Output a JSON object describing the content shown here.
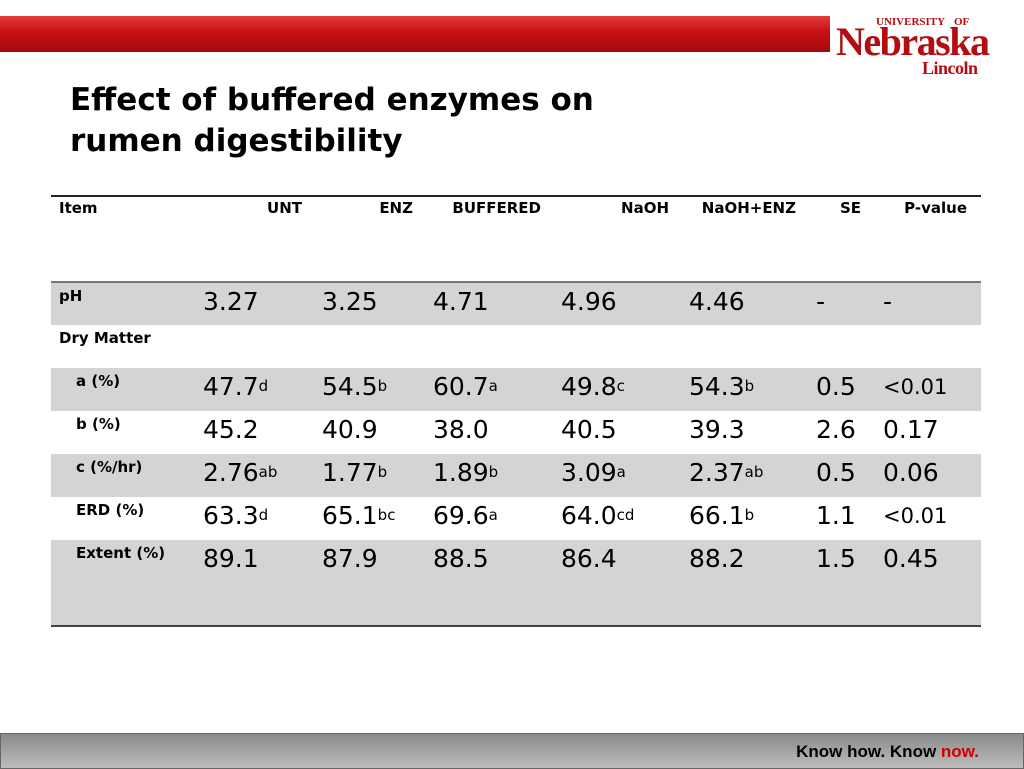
{
  "header": {
    "logo_university": "UNIVERSITY",
    "logo_of": "OF",
    "logo_name": "Nebraska",
    "logo_campus": "Lincoln"
  },
  "title": "Effect of buffered enzymes on rumen digestibility",
  "table": {
    "columns": [
      "Item",
      "UNT",
      "ENZ",
      "BUFFERED",
      "NaOH",
      "NaOH+ENZ",
      "SE",
      "P-value"
    ],
    "rows": [
      {
        "label": "pH",
        "values": [
          [
            "3.27",
            ""
          ],
          [
            "3.25",
            ""
          ],
          [
            "4.71",
            ""
          ],
          [
            "4.96",
            ""
          ],
          [
            "4.46",
            ""
          ]
        ],
        "se": "-",
        "p": "-"
      },
      {
        "label": "Dry Matter",
        "section": true
      },
      {
        "label": "a (%)",
        "values": [
          [
            "47.7",
            "d"
          ],
          [
            "54.5",
            "b"
          ],
          [
            "60.7",
            "a"
          ],
          [
            "49.8",
            "c"
          ],
          [
            "54.3",
            "b"
          ]
        ],
        "se": "0.5",
        "p": "<0.01"
      },
      {
        "label": "b (%)",
        "values": [
          [
            "45.2",
            ""
          ],
          [
            "40.9",
            ""
          ],
          [
            "38.0",
            ""
          ],
          [
            "40.5",
            ""
          ],
          [
            "39.3",
            ""
          ]
        ],
        "se": "2.6",
        "p": "0.17"
      },
      {
        "label": "c (%/hr)",
        "values": [
          [
            "2.76",
            "ab"
          ],
          [
            "1.77",
            "b"
          ],
          [
            "1.89",
            "b"
          ],
          [
            "3.09",
            "a"
          ],
          [
            "2.37",
            "ab"
          ]
        ],
        "se": "0.5",
        "p": "0.06"
      },
      {
        "label": "ERD (%)",
        "values": [
          [
            "63.3",
            "d"
          ],
          [
            "65.1",
            "bc"
          ],
          [
            "69.6",
            "a"
          ],
          [
            "64.0",
            "cd"
          ],
          [
            "66.1",
            "b"
          ]
        ],
        "se": "1.1",
        "p": "<0.01"
      },
      {
        "label": "Extent (%)",
        "values": [
          [
            "89.1",
            ""
          ],
          [
            "87.9",
            ""
          ],
          [
            "88.5",
            ""
          ],
          [
            "86.4",
            ""
          ],
          [
            "88.2",
            ""
          ]
        ],
        "se": "1.5",
        "p": "0.45"
      }
    ]
  },
  "footer": {
    "tagline_prefix": "Know how. Know ",
    "tagline_highlight": "now."
  }
}
